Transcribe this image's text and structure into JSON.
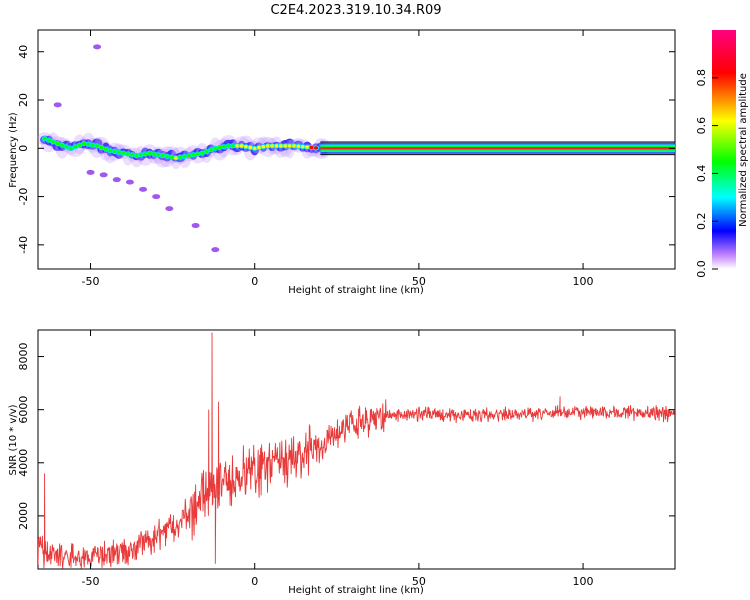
{
  "title": "C2E4.2023.319.10.34.R09",
  "chart_data": [
    {
      "type": "heatmap",
      "xlabel": "Height of straight line (km)",
      "ylabel": "Frequency (Hz)",
      "xlim": [
        -66,
        128
      ],
      "ylim": [
        -50,
        49
      ],
      "xticks": [
        -50,
        0,
        50,
        100
      ],
      "yticks": [
        -40,
        -20,
        0,
        20,
        40
      ],
      "colorbar": {
        "label": "Normalized spectral amplitude",
        "range": [
          0,
          1
        ],
        "ticks": [
          "0.0",
          "0.2",
          "0.4",
          "0.6",
          "0.8"
        ],
        "colors": [
          "#ffffff",
          "#8000ff",
          "#0000ff",
          "#00ffff",
          "#00ff00",
          "#ffff00",
          "#ff0000",
          "#ff0080"
        ]
      },
      "ridge": [
        {
          "x": -64,
          "freq": 4,
          "amp": 0.5
        },
        {
          "x": -60,
          "freq": 2,
          "amp": 0.55
        },
        {
          "x": -56,
          "freq": 0,
          "amp": 0.55
        },
        {
          "x": -52,
          "freq": 2,
          "amp": 0.6
        },
        {
          "x": -48,
          "freq": 1,
          "amp": 0.55
        },
        {
          "x": -44,
          "freq": -1,
          "amp": 0.55
        },
        {
          "x": -40,
          "freq": -2,
          "amp": 0.55
        },
        {
          "x": -36,
          "freq": -3,
          "amp": 0.5
        },
        {
          "x": -32,
          "freq": -2,
          "amp": 0.5
        },
        {
          "x": -28,
          "freq": -3,
          "amp": 0.55
        },
        {
          "x": -24,
          "freq": -4,
          "amp": 0.65
        },
        {
          "x": -20,
          "freq": -3,
          "amp": 0.55
        },
        {
          "x": -16,
          "freq": -2,
          "amp": 0.5
        },
        {
          "x": -12,
          "freq": 0,
          "amp": 0.6
        },
        {
          "x": -8,
          "freq": 1,
          "amp": 0.6
        },
        {
          "x": -4,
          "freq": 1,
          "amp": 0.7
        },
        {
          "x": 0,
          "freq": 0,
          "amp": 0.75
        },
        {
          "x": 4,
          "freq": 1,
          "amp": 0.7
        },
        {
          "x": 8,
          "freq": 1,
          "amp": 0.75
        },
        {
          "x": 12,
          "freq": 1,
          "amp": 0.7
        },
        {
          "x": 16,
          "freq": 0.5,
          "amp": 0.75
        },
        {
          "x": 20,
          "freq": 0,
          "amp": 0.9
        },
        {
          "x": 60,
          "freq": 0,
          "amp": 0.95
        },
        {
          "x": 128,
          "freq": 0,
          "amp": 0.95
        }
      ],
      "scatter": [
        {
          "x": -50,
          "freq": -10
        },
        {
          "x": -46,
          "freq": -11
        },
        {
          "x": -42,
          "freq": -13
        },
        {
          "x": -38,
          "freq": -14
        },
        {
          "x": -34,
          "freq": -17
        },
        {
          "x": -30,
          "freq": -20
        },
        {
          "x": -26,
          "freq": -25
        },
        {
          "x": -18,
          "freq": -32
        },
        {
          "x": -12,
          "freq": -42
        },
        {
          "x": -48,
          "freq": 42
        },
        {
          "x": -60,
          "freq": 18
        }
      ]
    },
    {
      "type": "line",
      "xlabel": "Height of straight line (km)",
      "ylabel": "SNR (10 * v/v)",
      "xlim": [
        -66,
        128
      ],
      "ylim": [
        0,
        9000
      ],
      "xticks": [
        -50,
        0,
        50,
        100
      ],
      "yticks": [
        2000,
        4000,
        6000,
        8000
      ],
      "color": "#e83a3a",
      "trend": [
        {
          "x": -66,
          "y": 700
        },
        {
          "x": -60,
          "y": 500
        },
        {
          "x": -50,
          "y": 400
        },
        {
          "x": -45,
          "y": 550
        },
        {
          "x": -40,
          "y": 700
        },
        {
          "x": -35,
          "y": 900
        },
        {
          "x": -30,
          "y": 1200
        },
        {
          "x": -25,
          "y": 1600
        },
        {
          "x": -20,
          "y": 2100
        },
        {
          "x": -15,
          "y": 2700
        },
        {
          "x": -10,
          "y": 3200
        },
        {
          "x": -5,
          "y": 3500
        },
        {
          "x": 0,
          "y": 3700
        },
        {
          "x": 5,
          "y": 3900
        },
        {
          "x": 10,
          "y": 4100
        },
        {
          "x": 15,
          "y": 4300
        },
        {
          "x": 20,
          "y": 4600
        },
        {
          "x": 25,
          "y": 5100
        },
        {
          "x": 30,
          "y": 5400
        },
        {
          "x": 35,
          "y": 5600
        },
        {
          "x": 40,
          "y": 5800
        },
        {
          "x": 50,
          "y": 5850
        },
        {
          "x": 60,
          "y": 5800
        },
        {
          "x": 80,
          "y": 5800
        },
        {
          "x": 95,
          "y": 5900
        },
        {
          "x": 110,
          "y": 5900
        },
        {
          "x": 128,
          "y": 5850
        }
      ],
      "spikes": [
        {
          "x": -64,
          "y": 3600
        },
        {
          "x": -13,
          "y": 8900
        },
        {
          "x": -12,
          "y": 200
        },
        {
          "x": -11,
          "y": 6300
        },
        {
          "x": -14,
          "y": 6000
        },
        {
          "x": 93,
          "y": 6500
        }
      ]
    }
  ]
}
